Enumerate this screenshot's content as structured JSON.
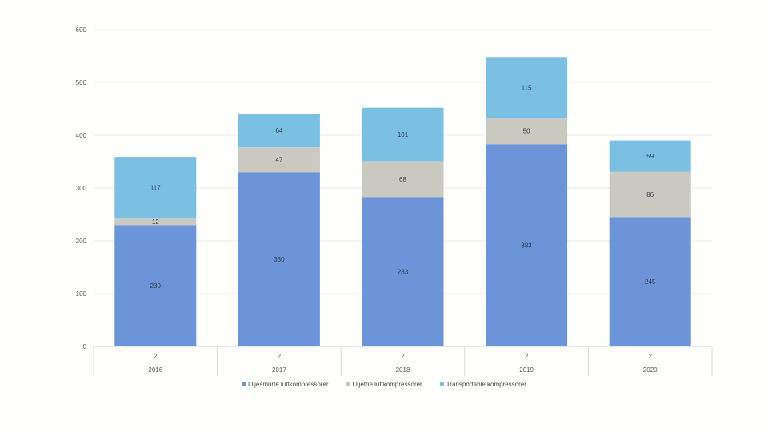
{
  "chart_data": {
    "type": "bar",
    "stacked": true,
    "title": "",
    "xlabel": "",
    "ylabel": "",
    "ylim": [
      0,
      600
    ],
    "yticks": [
      0,
      100,
      200,
      300,
      400,
      500,
      600
    ],
    "grid": true,
    "legend_position": "bottom",
    "categories": [
      "2016",
      "2017",
      "2018",
      "2019",
      "2020"
    ],
    "subcategories": [
      "2",
      "2",
      "2",
      "2",
      "2"
    ],
    "series": [
      {
        "name": "Oljesmurte luftkompressorer",
        "color": "#6c95d9",
        "values": [
          230,
          330,
          283,
          383,
          245
        ]
      },
      {
        "name": "Oljefrie luftkompressorer",
        "color": "#c9c8c1",
        "values": [
          12,
          47,
          68,
          50,
          86
        ]
      },
      {
        "name": "Transportable kompressorer",
        "color": "#7bbfe3",
        "values": [
          117,
          64,
          101,
          115,
          59
        ]
      }
    ]
  }
}
